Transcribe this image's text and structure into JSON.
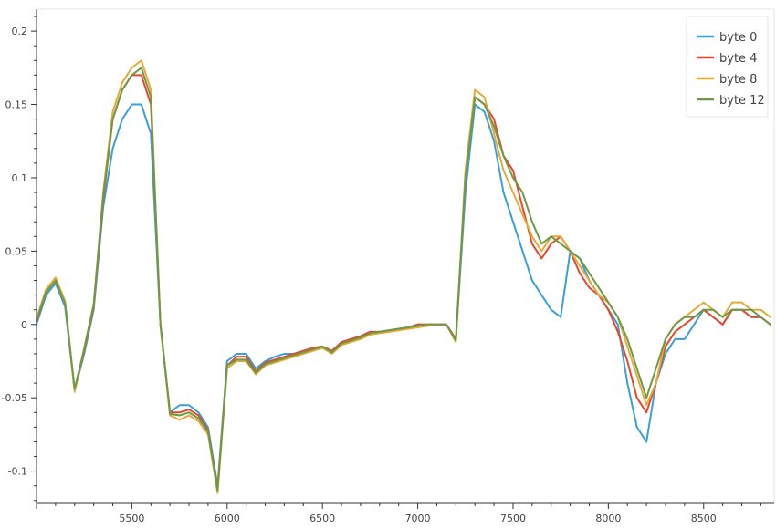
{
  "chart_data": {
    "type": "line",
    "title": "",
    "xlabel": "",
    "ylabel": "",
    "xlim": [
      5000,
      8870
    ],
    "ylim": [
      -0.122,
      0.215
    ],
    "grid": false,
    "legend_position": "top-right",
    "x_ticks": [
      {
        "value": 5500,
        "label": "5500"
      },
      {
        "value": 6000,
        "label": "6000"
      },
      {
        "value": 6500,
        "label": "6500"
      },
      {
        "value": 7000,
        "label": "7000"
      },
      {
        "value": 7500,
        "label": "7500"
      },
      {
        "value": 8000,
        "label": "8000"
      },
      {
        "value": 8500,
        "label": "8500"
      }
    ],
    "y_ticks": [
      {
        "value": 0.2,
        "label": "0.2"
      },
      {
        "value": 0.15,
        "label": "0.15"
      },
      {
        "value": 0.1,
        "label": "0.1"
      },
      {
        "value": 0.05,
        "label": "0.05"
      },
      {
        "value": 0,
        "label": "0"
      },
      {
        "value": -0.05,
        "label": "-0.05"
      },
      {
        "value": -0.1,
        "label": "-0.1"
      }
    ],
    "x": [
      5000,
      5050,
      5100,
      5150,
      5200,
      5250,
      5300,
      5350,
      5400,
      5450,
      5500,
      5550,
      5600,
      5650,
      5700,
      5750,
      5800,
      5850,
      5900,
      5950,
      6000,
      6050,
      6100,
      6150,
      6200,
      6250,
      6300,
      6350,
      6400,
      6450,
      6500,
      6550,
      6600,
      6650,
      6700,
      6750,
      6800,
      6850,
      6900,
      6950,
      7000,
      7050,
      7100,
      7150,
      7200,
      7250,
      7300,
      7350,
      7400,
      7450,
      7500,
      7550,
      7600,
      7650,
      7700,
      7750,
      7800,
      7850,
      7900,
      7950,
      8000,
      8050,
      8100,
      8150,
      8200,
      8250,
      8300,
      8350,
      8400,
      8450,
      8500,
      8550,
      8600,
      8650,
      8700,
      8750,
      8800,
      8850
    ],
    "series": [
      {
        "name": "byte 0",
        "color": "#3a9fd8",
        "values": [
          0.0,
          0.02,
          0.028,
          0.012,
          -0.045,
          -0.02,
          0.01,
          0.08,
          0.12,
          0.14,
          0.15,
          0.15,
          0.13,
          0.0,
          -0.06,
          -0.055,
          -0.055,
          -0.06,
          -0.07,
          -0.11,
          -0.025,
          -0.02,
          -0.02,
          -0.03,
          -0.025,
          -0.022,
          -0.02,
          -0.02,
          -0.018,
          -0.016,
          -0.015,
          -0.018,
          -0.012,
          -0.01,
          -0.008,
          -0.005,
          -0.005,
          -0.004,
          -0.003,
          -0.002,
          0.0,
          0.0,
          0.0,
          0.0,
          -0.01,
          0.09,
          0.15,
          0.145,
          0.125,
          0.09,
          0.07,
          0.05,
          0.03,
          0.02,
          0.01,
          0.005,
          0.05,
          0.045,
          0.03,
          0.02,
          0.01,
          0.0,
          -0.04,
          -0.07,
          -0.08,
          -0.04,
          -0.02,
          -0.01,
          -0.01,
          0.0,
          0.01,
          0.005,
          0.0,
          0.01,
          0.01,
          0.005,
          0.005,
          0.0
        ]
      },
      {
        "name": "byte 4",
        "color": "#e8472c",
        "values": [
          0.002,
          0.022,
          0.03,
          0.015,
          -0.045,
          -0.018,
          0.012,
          0.085,
          0.14,
          0.16,
          0.17,
          0.17,
          0.15,
          0.0,
          -0.06,
          -0.06,
          -0.058,
          -0.062,
          -0.072,
          -0.112,
          -0.028,
          -0.022,
          -0.022,
          -0.032,
          -0.026,
          -0.024,
          -0.022,
          -0.02,
          -0.018,
          -0.016,
          -0.015,
          -0.018,
          -0.012,
          -0.01,
          -0.008,
          -0.005,
          -0.005,
          -0.004,
          -0.003,
          -0.002,
          0.0,
          0.0,
          0.0,
          0.0,
          -0.01,
          0.1,
          0.155,
          0.15,
          0.14,
          0.115,
          0.105,
          0.08,
          0.055,
          0.045,
          0.055,
          0.06,
          0.05,
          0.035,
          0.025,
          0.02,
          0.01,
          -0.005,
          -0.025,
          -0.05,
          -0.06,
          -0.04,
          -0.015,
          -0.005,
          0.0,
          0.005,
          0.01,
          0.005,
          0.0,
          0.01,
          0.01,
          0.005,
          0.005,
          0.0
        ]
      },
      {
        "name": "byte 8",
        "color": "#e6a93a",
        "values": [
          0.004,
          0.024,
          0.032,
          0.016,
          -0.046,
          -0.016,
          0.014,
          0.09,
          0.145,
          0.165,
          0.175,
          0.18,
          0.16,
          0.0,
          -0.062,
          -0.065,
          -0.062,
          -0.066,
          -0.075,
          -0.115,
          -0.03,
          -0.025,
          -0.025,
          -0.034,
          -0.028,
          -0.026,
          -0.024,
          -0.022,
          -0.02,
          -0.018,
          -0.016,
          -0.02,
          -0.014,
          -0.012,
          -0.01,
          -0.007,
          -0.006,
          -0.005,
          -0.004,
          -0.003,
          -0.002,
          -0.001,
          0.0,
          0.0,
          -0.012,
          0.105,
          0.16,
          0.155,
          0.13,
          0.105,
          0.09,
          0.075,
          0.06,
          0.05,
          0.06,
          0.06,
          0.05,
          0.04,
          0.03,
          0.02,
          0.015,
          0.005,
          -0.015,
          -0.035,
          -0.055,
          -0.04,
          -0.01,
          0.0,
          0.005,
          0.01,
          0.015,
          0.01,
          0.005,
          0.015,
          0.015,
          0.01,
          0.01,
          0.005
        ]
      },
      {
        "name": "byte 12",
        "color": "#6d9a44",
        "values": [
          0.003,
          0.022,
          0.03,
          0.014,
          -0.044,
          -0.017,
          0.013,
          0.088,
          0.14,
          0.16,
          0.17,
          0.175,
          0.155,
          0.0,
          -0.061,
          -0.062,
          -0.06,
          -0.064,
          -0.073,
          -0.113,
          -0.028,
          -0.024,
          -0.024,
          -0.033,
          -0.027,
          -0.025,
          -0.023,
          -0.021,
          -0.019,
          -0.017,
          -0.015,
          -0.019,
          -0.013,
          -0.011,
          -0.009,
          -0.006,
          -0.005,
          -0.004,
          -0.003,
          -0.002,
          -0.001,
          0.0,
          0.0,
          0.0,
          -0.011,
          0.1,
          0.155,
          0.15,
          0.135,
          0.115,
          0.1,
          0.09,
          0.07,
          0.055,
          0.06,
          0.055,
          0.05,
          0.045,
          0.035,
          0.025,
          0.015,
          0.005,
          -0.01,
          -0.03,
          -0.05,
          -0.03,
          -0.01,
          0.0,
          0.005,
          0.005,
          0.01,
          0.01,
          0.005,
          0.01,
          0.01,
          0.01,
          0.005,
          0.0
        ]
      }
    ]
  }
}
